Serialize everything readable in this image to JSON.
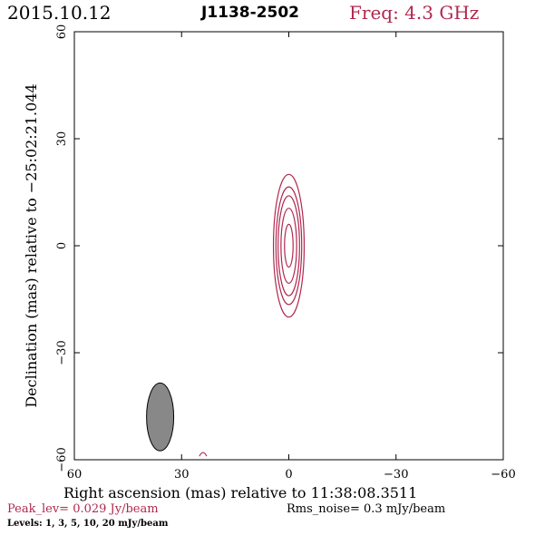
{
  "header": {
    "date": "2015.10.12",
    "source": "J1138-2502",
    "frequency": "Freq: 4.3 GHz"
  },
  "footer": {
    "peak": "Peak_lev=  0.029 Jy/beam",
    "rms": "Rms_noise=  0.3 mJy/beam",
    "levels": "Levels:  1,  3,  5,  10,  20 mJy/beam"
  },
  "colors": {
    "contour": "#b0284f",
    "beam": "#888888"
  },
  "chart_data": {
    "type": "contour",
    "title": "J1138-2502",
    "xlabel": "Right ascension (mas) relative to 11:38:08.3511",
    "ylabel": "Declination (mas) relative to −25:02:21.044",
    "xlim": [
      60,
      -60
    ],
    "ylim": [
      -60,
      60
    ],
    "x_ticks": [
      60,
      30,
      0,
      -30,
      -60
    ],
    "y_ticks": [
      -60,
      -30,
      0,
      30,
      60
    ],
    "x_tick_labels": [
      "60",
      "30",
      "0",
      "−30",
      "−60"
    ],
    "y_tick_labels": [
      "−60",
      "−30",
      "0",
      "30",
      "60"
    ],
    "levels_mJy_per_beam": [
      1,
      3,
      5,
      10,
      20
    ],
    "peak_Jy_per_beam": 0.029,
    "rms_noise_mJy_per_beam": 0.3,
    "component_center": [
      0,
      0
    ],
    "contours": [
      {
        "level": 1,
        "semi_major": 20,
        "semi_minor": 4.3
      },
      {
        "level": 3,
        "semi_major": 16.5,
        "semi_minor": 3.6
      },
      {
        "level": 5,
        "semi_major": 14,
        "semi_minor": 3.0
      },
      {
        "level": 10,
        "semi_major": 10.5,
        "semi_minor": 2.2
      },
      {
        "level": 20,
        "semi_major": 6,
        "semi_minor": 1.2
      }
    ],
    "noise_contours": [
      {
        "level": 1,
        "x": 24,
        "y": -58.5
      }
    ],
    "beam": {
      "x": 36,
      "y": -48,
      "semi_major": 9.5,
      "semi_minor": 2
    }
  }
}
